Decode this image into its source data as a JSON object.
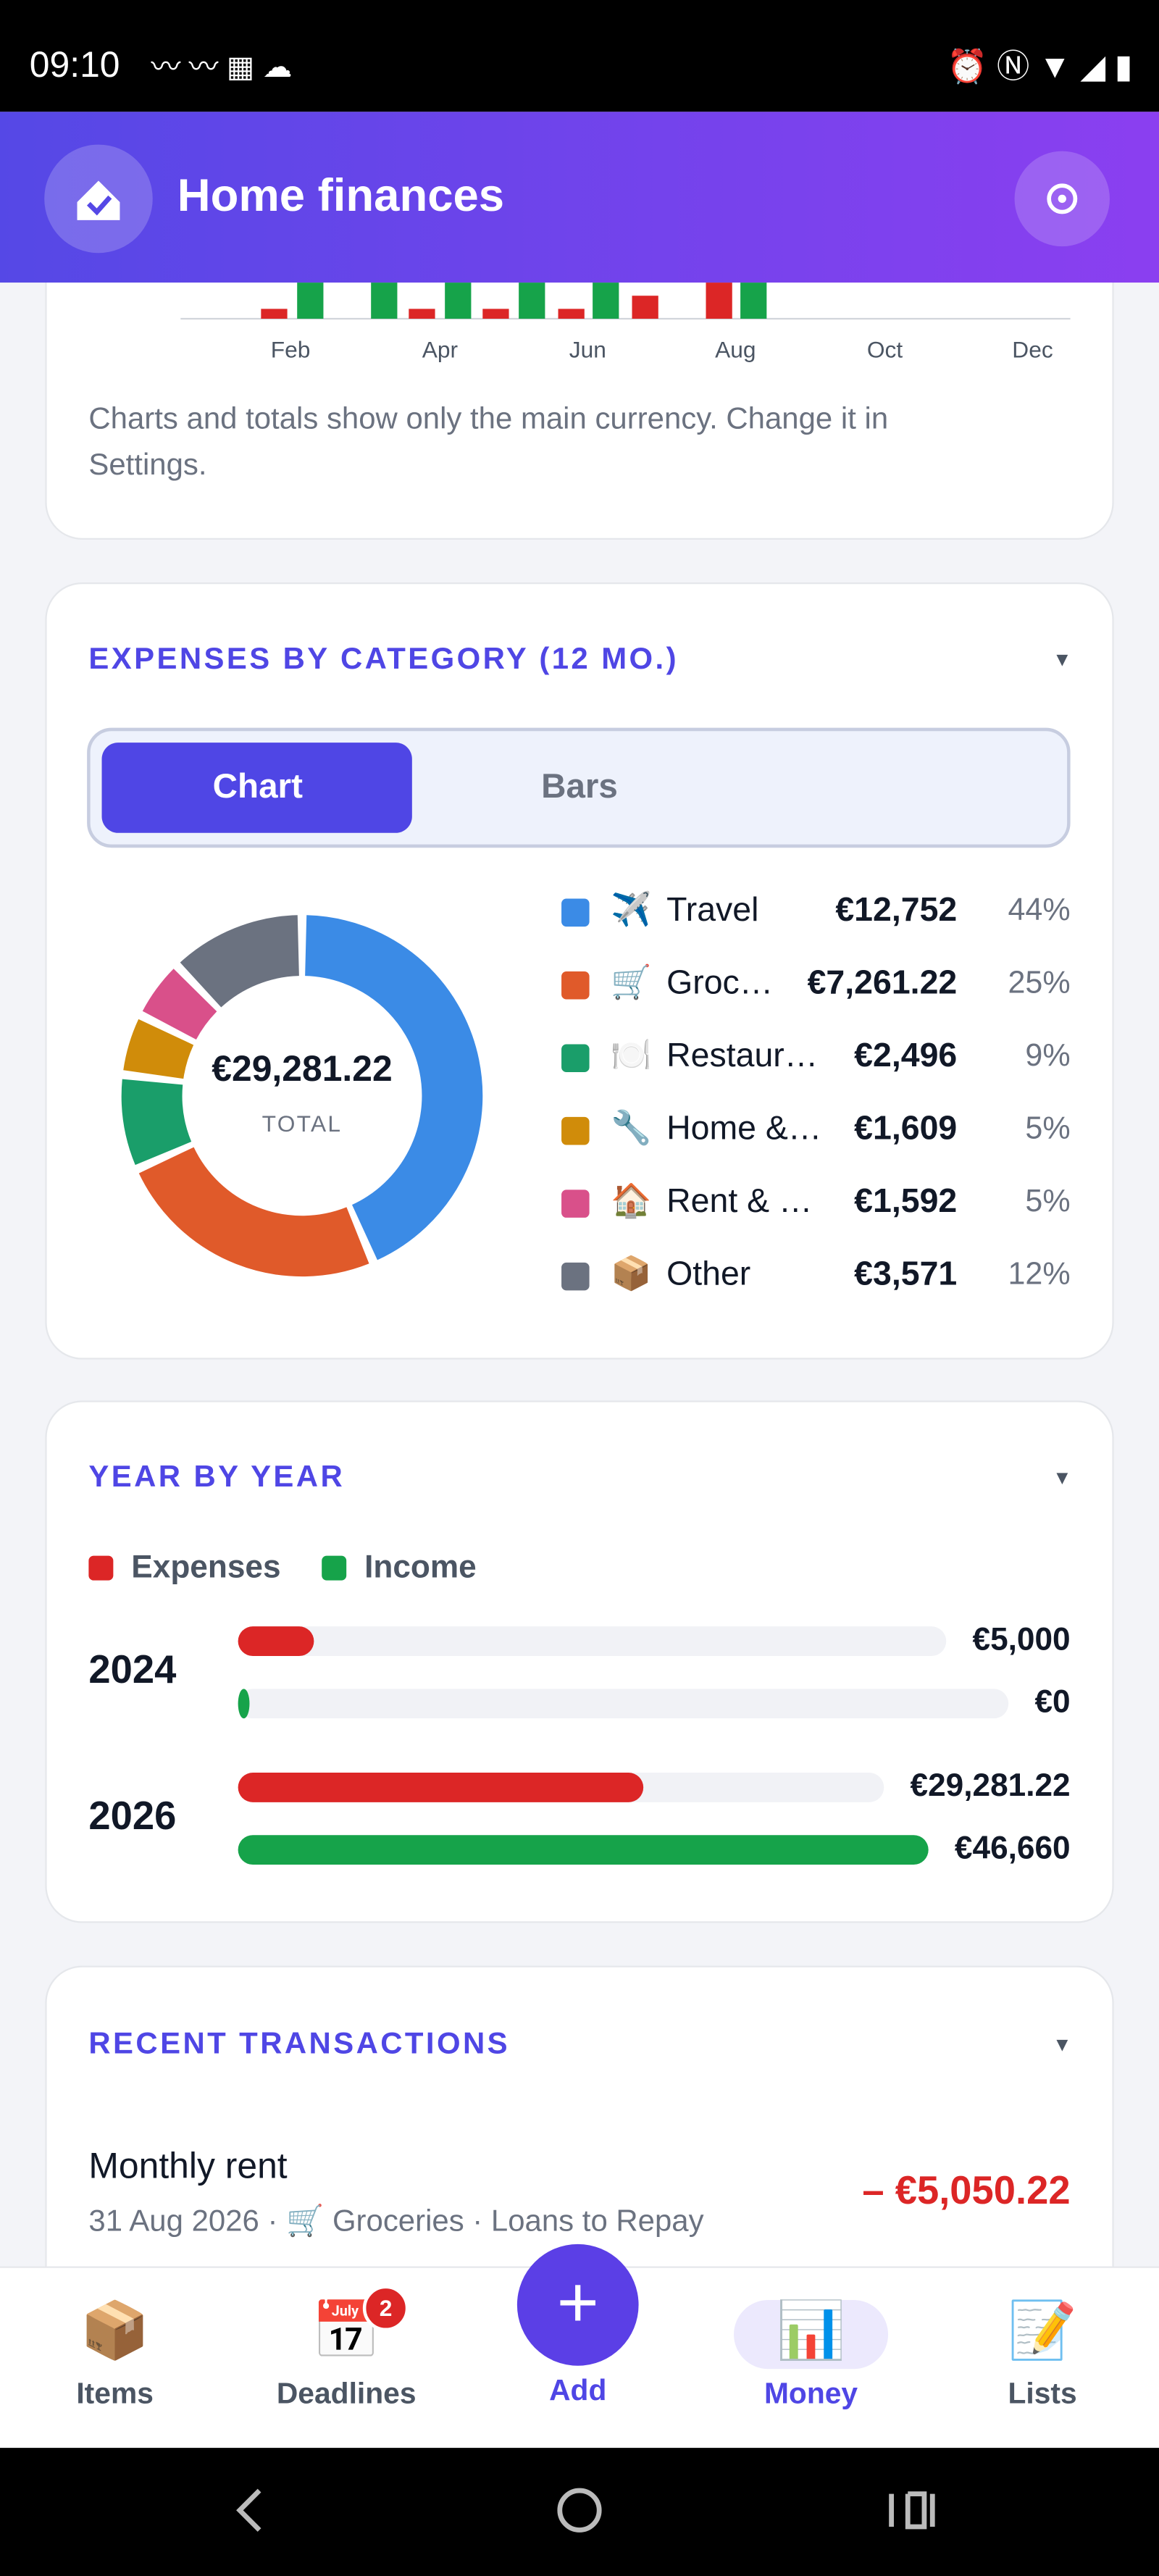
{
  "status_bar": {
    "time": "09:10"
  },
  "header": {
    "title": "Home finances"
  },
  "monthly_chart": {
    "xticks": [
      "Feb",
      "Apr",
      "Jun",
      "Aug",
      "Oct",
      "Dec"
    ],
    "note_lines": [
      "Charts and totals show only the main currency. Change it in",
      "Settings."
    ]
  },
  "expenses_by_category": {
    "title": "EXPENSES BY CATEGORY (12 MO.)",
    "tabs": [
      "Chart",
      "Bars"
    ],
    "total_label": "€29,281.22",
    "total_caption": "TOTAL",
    "categories": [
      {
        "icon": "✈️",
        "name": "Travel",
        "value": 12752,
        "value_label": "€12,752",
        "percent": "44%",
        "color": "#3b8be6"
      },
      {
        "icon": "🛒",
        "name": "Groc…",
        "value": 7261.22,
        "value_label": "€7,261.22",
        "percent": "25%",
        "color": "#e05a2a"
      },
      {
        "icon": "🍽️",
        "name": "Restaur…",
        "value": 2496,
        "value_label": "€2,496",
        "percent": "9%",
        "color": "#1a9e6a"
      },
      {
        "icon": "🔧",
        "name": "Home &…",
        "value": 1609,
        "value_label": "€1,609",
        "percent": "5%",
        "color": "#d08c0a"
      },
      {
        "icon": "🏠",
        "name": "Rent & …",
        "value": 1592,
        "value_label": "€1,592",
        "percent": "5%",
        "color": "#d9508a"
      },
      {
        "icon": "📦",
        "name": "Other",
        "value": 3571,
        "value_label": "€3,571",
        "percent": "12%",
        "color": "#6b7280"
      }
    ]
  },
  "year_by_year": {
    "title": "YEAR BY YEAR",
    "legend": [
      {
        "name": "Expenses",
        "color": "#dc2626"
      },
      {
        "name": "Income",
        "color": "#16a34a"
      }
    ],
    "years": [
      {
        "year": "2024",
        "expenses": 5000,
        "expenses_label": "€5,000",
        "income": 0,
        "income_label": "€0"
      },
      {
        "year": "2026",
        "expenses": 29281.22,
        "expenses_label": "€29,281.22",
        "income": 46660,
        "income_label": "€46,660"
      }
    ]
  },
  "recent_transactions": {
    "title": "RECENT TRANSACTIONS",
    "items": [
      {
        "title": "Monthly rent",
        "subtitle": "31 Aug 2026 · 🛒 Groceries · Loans to Repay",
        "amount": "– €5,050.22"
      }
    ]
  },
  "bottom_nav": [
    {
      "icon": "📦",
      "label": "Items"
    },
    {
      "icon": "📅",
      "label": "Deadlines",
      "badge": "2"
    },
    {
      "icon": "+",
      "label": "Add"
    },
    {
      "icon": "📊",
      "label": "Money"
    },
    {
      "icon": "📝",
      "label": "Lists"
    }
  ]
}
